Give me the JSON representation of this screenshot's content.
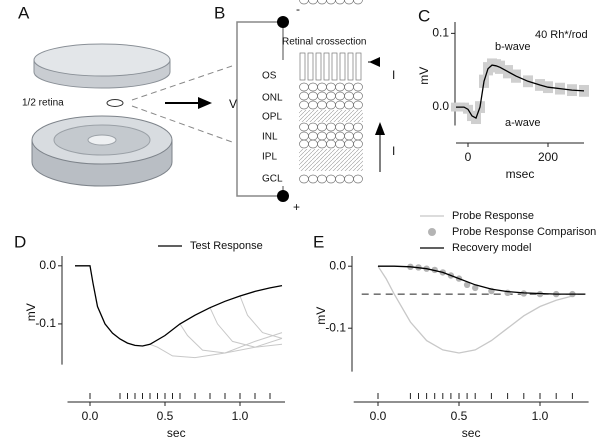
{
  "panel_labels": [
    "A",
    "B",
    "C",
    "D",
    "E"
  ],
  "panel_a": {
    "label": "1/2 retina"
  },
  "panel_b": {
    "title": "Retinal crossection",
    "layers": [
      "OS",
      "ONL",
      "OPL",
      "INL",
      "IPL",
      "GCL"
    ],
    "voltage": "V",
    "negative": "-",
    "positive": "+",
    "current_labels": [
      "I",
      "I"
    ]
  },
  "chart_data": [
    {
      "type": "line",
      "xlabel": "msec",
      "ylabel": "mV",
      "annotations": [
        "40 Rh*/rod",
        "b-wave",
        "a-wave"
      ],
      "x": [
        -30,
        -20,
        -10,
        0,
        10,
        20,
        30,
        40,
        50,
        60,
        70,
        80,
        100,
        120,
        150,
        180,
        200,
        230,
        260,
        290
      ],
      "series": [
        {
          "color": "#000000",
          "band_color": "#cfcfcf",
          "values": [
            0.0,
            0.0,
            0.0,
            -0.003,
            -0.012,
            -0.015,
            0.0,
            0.035,
            0.052,
            0.057,
            0.056,
            0.054,
            0.048,
            0.042,
            0.035,
            0.03,
            0.027,
            0.025,
            0.023,
            0.022
          ],
          "error": [
            0.006,
            0.006,
            0.006,
            0.006,
            0.007,
            0.008,
            0.008,
            0.009,
            0.009,
            0.009,
            0.009,
            0.009,
            0.009,
            0.009,
            0.008,
            0.008,
            0.008,
            0.008,
            0.008,
            0.008
          ]
        }
      ],
      "xlim": [
        -30,
        290
      ],
      "xticks": [
        0,
        200
      ],
      "ylim": [
        -0.025,
        0.11
      ],
      "yticks": [
        {
          "value": 0,
          "label": "0.0"
        },
        0.1
      ]
    },
    {
      "type": "line",
      "xlabel": "sec",
      "ylabel": "mV",
      "legend": "top",
      "x": [
        -0.1,
        -0.05,
        0,
        0.02,
        0.05,
        0.1,
        0.15,
        0.2,
        0.25,
        0.3,
        0.35,
        0.4,
        0.5,
        0.6,
        0.7,
        0.8,
        0.9,
        1.0,
        1.1,
        1.2,
        1.28
      ],
      "series": [
        {
          "color": "#c8c8c8",
          "x": [
            0.4,
            0.45,
            0.55,
            0.7,
            0.9,
            1.1,
            1.28
          ],
          "values": [
            -0.135,
            -0.14,
            -0.155,
            -0.158,
            -0.15,
            -0.13,
            -0.115
          ]
        },
        {
          "color": "#c8c8c8",
          "x": [
            0.6,
            0.65,
            0.75,
            0.9,
            1.1,
            1.28
          ],
          "values": [
            -0.1,
            -0.12,
            -0.145,
            -0.15,
            -0.14,
            -0.125
          ]
        },
        {
          "color": "#c8c8c8",
          "x": [
            0.8,
            0.85,
            0.95,
            1.1,
            1.28
          ],
          "values": [
            -0.072,
            -0.1,
            -0.13,
            -0.14,
            -0.135
          ]
        },
        {
          "color": "#c8c8c8",
          "x": [
            1.0,
            1.05,
            1.15,
            1.28
          ],
          "values": [
            -0.052,
            -0.085,
            -0.115,
            -0.125
          ]
        },
        {
          "name": "Test Response",
          "color": "#000000",
          "values": [
            0,
            0,
            0,
            -0.03,
            -0.07,
            -0.1,
            -0.116,
            -0.126,
            -0.133,
            -0.137,
            -0.138,
            -0.135,
            -0.12,
            -0.1,
            -0.085,
            -0.072,
            -0.061,
            -0.052,
            -0.044,
            -0.038,
            -0.034
          ]
        }
      ],
      "stimulus_times": [
        0,
        0.2,
        0.25,
        0.3,
        0.35,
        0.4,
        0.45,
        0.5,
        0.55,
        0.6,
        0.7,
        0.8,
        0.9,
        1.0,
        1.1,
        1.2
      ],
      "xlim": [
        -0.15,
        1.3
      ],
      "xticks": [
        {
          "value": 0,
          "label": "0.0"
        },
        0.5,
        {
          "value": 1,
          "label": "1.0"
        }
      ],
      "ylim": [
        -0.17,
        0.01
      ],
      "yticks": [
        {
          "value": 0,
          "label": "0.0"
        },
        -0.1
      ]
    },
    {
      "type": "line",
      "xlabel": "sec",
      "ylabel": "mV",
      "legend": "top",
      "reference_line": -0.045,
      "series": [
        {
          "name": "Probe Response",
          "color": "#c8c8c8",
          "type": "line",
          "x": [
            0,
            0.05,
            0.1,
            0.2,
            0.3,
            0.4,
            0.5,
            0.6,
            0.7,
            0.8,
            0.9,
            1.0,
            1.1,
            1.2
          ],
          "values": [
            0,
            -0.02,
            -0.045,
            -0.09,
            -0.12,
            -0.135,
            -0.14,
            -0.135,
            -0.12,
            -0.1,
            -0.08,
            -0.065,
            -0.055,
            -0.048
          ]
        },
        {
          "name": "Probe Response Comparison",
          "color": "#b4b4b4",
          "type": "scatter",
          "x": [
            0.2,
            0.25,
            0.3,
            0.35,
            0.4,
            0.45,
            0.5,
            0.55,
            0.6,
            0.7,
            0.8,
            0.9,
            1.0,
            1.1,
            1.2
          ],
          "values": [
            -0.001,
            -0.002,
            -0.004,
            -0.006,
            -0.01,
            -0.015,
            -0.02,
            -0.03,
            -0.035,
            -0.04,
            -0.043,
            -0.044,
            -0.045,
            -0.045,
            -0.045
          ]
        },
        {
          "name": "Recovery model",
          "color": "#000000",
          "type": "line",
          "x": [
            0,
            0.1,
            0.2,
            0.3,
            0.4,
            0.5,
            0.6,
            0.7,
            0.8,
            0.9,
            1.0,
            1.1,
            1.2,
            1.28
          ],
          "values": [
            0,
            0,
            -0.001,
            -0.004,
            -0.01,
            -0.02,
            -0.03,
            -0.037,
            -0.041,
            -0.043,
            -0.044,
            -0.045,
            -0.045,
            -0.045
          ]
        }
      ],
      "stimulus_times": [
        0,
        0.2,
        0.25,
        0.3,
        0.35,
        0.4,
        0.45,
        0.5,
        0.55,
        0.6,
        0.7,
        0.8,
        0.9,
        1.0,
        1.1,
        1.2
      ],
      "xlim": [
        -0.15,
        1.3
      ],
      "xticks": [
        {
          "value": 0,
          "label": "0.0"
        },
        0.5,
        {
          "value": 1,
          "label": "1.0"
        }
      ],
      "ylim": [
        -0.17,
        0.01
      ],
      "yticks": [
        {
          "value": 0,
          "label": "0.0"
        },
        -0.1
      ]
    }
  ]
}
